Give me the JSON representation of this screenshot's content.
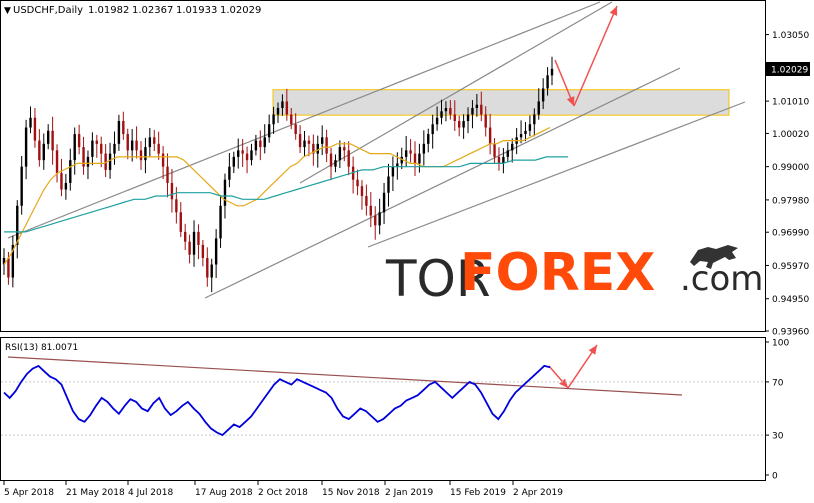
{
  "chart_data": [
    {
      "type": "line",
      "symbol": "USDCHF,Daily",
      "ohlc": [
        "1.01982",
        "1.02367",
        "1.01933",
        "1.02029"
      ],
      "current_price": "1.02029",
      "y_ticks": [
        "1.03050",
        "1.02029",
        "1.01010",
        "1.00020",
        "0.99000",
        "0.97980",
        "0.96990",
        "0.95970",
        "0.94950",
        "0.93960"
      ],
      "x_ticks": [
        "5 Apr 2018",
        "21 May 2018",
        "4 Jul 2018",
        "17 Aug 2018",
        "2 Oct 2018",
        "15 Nov 2018",
        "2 Jan 2019",
        "15 Feb 2019",
        "2 Apr 2019"
      ],
      "ylim": [
        0.9396,
        1.0405
      ],
      "resistance_zone": [
        1.0058,
        1.0136
      ],
      "series": [
        {
          "values": [
            0.962,
            0.956,
            0.966,
            0.978,
            0.99,
            1.002,
            1.005,
            0.998,
            0.992,
            0.997,
            1.001,
            0.995,
            0.988,
            0.983,
            0.985,
            0.992,
            1.0,
            0.996,
            0.99,
            0.993,
            0.998,
            0.997,
            0.994,
            0.989,
            0.994,
            0.997,
            1.004,
            1.0,
            0.995,
            0.998,
            0.995,
            0.992,
            0.996,
            0.999,
            0.997,
            0.994,
            0.99,
            0.985,
            0.98,
            0.976,
            0.97,
            0.967,
            0.963,
            0.97,
            0.966,
            0.962,
            0.956,
            0.96,
            0.968,
            0.978,
            0.986,
            0.99,
            0.993,
            0.995,
            0.994,
            0.992,
            0.995,
            0.998,
            0.996,
            0.999,
            1.003,
            1.006,
            1.008,
            1.01,
            1.006,
            1.003,
            1.0,
            0.996,
            0.998,
            0.997,
            0.994,
            0.997,
            0.999,
            0.994,
            0.99,
            0.992,
            0.996,
            0.995,
            0.99,
            0.986,
            0.984,
            0.981,
            0.978,
            0.975,
            0.972,
            0.976,
            0.982,
            0.987,
            0.99,
            0.991,
            0.993,
            0.995,
            0.994,
            0.991,
            0.994,
            0.997,
            1.0,
            1.003,
            1.005,
            1.007,
            1.008,
            1.006,
            1.004,
            1.002,
            1.004,
            1.006,
            1.008,
            1.009,
            1.006,
            1.002,
            0.997,
            0.993,
            0.991,
            0.993,
            0.995,
            0.997,
            0.999,
            1.0,
            1.001,
            1.003,
            1.006,
            1.01,
            1.014,
            1.018,
            1.02
          ],
          "color": "#000000"
        },
        {
          "values": [
            0.96,
            0.963,
            0.967,
            0.971,
            0.975,
            0.979,
            0.983,
            0.986,
            0.988,
            0.989,
            0.99,
            0.991,
            0.991,
            0.991,
            0.991,
            0.991,
            0.992,
            0.993,
            0.993,
            0.993,
            0.993,
            0.993,
            0.993,
            0.993,
            0.993,
            0.993,
            0.993,
            0.992,
            0.99,
            0.988,
            0.986,
            0.984,
            0.982,
            0.98,
            0.979,
            0.978,
            0.978,
            0.979,
            0.98,
            0.982,
            0.984,
            0.986,
            0.988,
            0.99,
            0.991,
            0.993,
            0.994,
            0.995,
            0.996,
            0.996,
            0.997,
            0.997,
            0.997,
            0.996,
            0.995,
            0.994,
            0.994,
            0.994,
            0.994,
            0.993,
            0.992,
            0.991,
            0.991,
            0.99,
            0.99,
            0.99,
            0.99,
            0.991,
            0.992,
            0.993,
            0.994,
            0.995,
            0.996,
            0.997,
            0.997,
            0.998,
            0.998,
            0.998,
            0.998,
            0.999,
            1.0,
            1.001,
            1.002
          ],
          "color": "#e6a817"
        },
        {
          "values": [
            0.97,
            0.97,
            0.97,
            0.971,
            0.972,
            0.973,
            0.974,
            0.975,
            0.976,
            0.977,
            0.978,
            0.979,
            0.98,
            0.98,
            0.981,
            0.981,
            0.982,
            0.982,
            0.982,
            0.982,
            0.981,
            0.981,
            0.98,
            0.98,
            0.98,
            0.981,
            0.982,
            0.983,
            0.984,
            0.985,
            0.986,
            0.987,
            0.988,
            0.989,
            0.989,
            0.99,
            0.99,
            0.99,
            0.99,
            0.99,
            0.99,
            0.99,
            0.99,
            0.991,
            0.991,
            0.991,
            0.991,
            0.992,
            0.992,
            0.992,
            0.993,
            0.993,
            0.993
          ],
          "color": "#1fa0a0"
        }
      ]
    },
    {
      "type": "line",
      "title": "RSI(13) 81.0071",
      "y_ticks": [
        "100",
        "70",
        "30",
        "0"
      ],
      "ylim": [
        0,
        100
      ],
      "series": [
        {
          "values": [
            62,
            58,
            63,
            70,
            76,
            80,
            82,
            78,
            74,
            72,
            68,
            58,
            48,
            42,
            40,
            45,
            52,
            58,
            55,
            50,
            46,
            52,
            57,
            55,
            50,
            48,
            54,
            58,
            50,
            45,
            48,
            52,
            55,
            50,
            46,
            40,
            35,
            32,
            30,
            34,
            38,
            36,
            40,
            44,
            50,
            56,
            62,
            68,
            72,
            70,
            68,
            72,
            70,
            68,
            66,
            64,
            62,
            58,
            50,
            44,
            42,
            46,
            50,
            48,
            44,
            40,
            42,
            46,
            50,
            52,
            56,
            58,
            60,
            64,
            68,
            70,
            66,
            62,
            58,
            62,
            66,
            70,
            68,
            62,
            54,
            46,
            42,
            48,
            56,
            62,
            66,
            70,
            74,
            78,
            82,
            81
          ],
          "color": "#0000dd"
        }
      ]
    }
  ],
  "watermark": {
    "tor": "TOR",
    "forex": "FOREX",
    "com": ".com"
  },
  "colors": {
    "bull": "#000000",
    "bear": "#a01010",
    "arrow": "#f05050",
    "zone": "#f5c200",
    "rsi": "#0000dd",
    "ema_fast": "#e6a817",
    "ema_slow": "#1fa0a0"
  }
}
